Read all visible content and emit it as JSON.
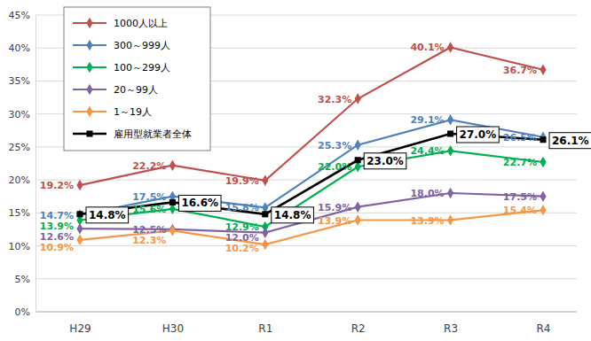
{
  "chart_data": {
    "type": "line",
    "categories": [
      "H29",
      "H30",
      "R1",
      "R2",
      "R3",
      "R4"
    ],
    "series": [
      {
        "name": "1000人以上",
        "color": "#C0504D",
        "marker": "diamond",
        "line_style": "solid",
        "values": [
          19.2,
          22.2,
          19.9,
          32.3,
          40.1,
          36.7
        ],
        "value_labels": [
          "19.2%",
          "22.2%",
          "19.9%",
          "32.3%",
          "40.1%",
          "36.7%"
        ]
      },
      {
        "name": "300～999人",
        "color": "#4F81BD",
        "marker": "diamond",
        "line_style": "solid",
        "values": [
          14.7,
          17.5,
          15.8,
          25.3,
          29.1,
          26.5
        ],
        "value_labels": [
          "14.7%",
          "17.5%",
          "15.8%",
          "25.3%",
          "29.1%",
          "26.5%"
        ]
      },
      {
        "name": "100～299人",
        "color": "#00B050",
        "marker": "diamond",
        "line_style": "solid",
        "values": [
          13.9,
          15.6,
          12.9,
          22.0,
          24.4,
          22.7
        ],
        "value_labels": [
          "13.9%",
          "15.6%",
          "12.9%",
          "22.0%",
          "24.4%",
          "22.7%"
        ]
      },
      {
        "name": "20～99人",
        "color": "#8064A2",
        "marker": "diamond",
        "line_style": "solid",
        "values": [
          12.6,
          12.5,
          12.0,
          15.9,
          18.0,
          17.5
        ],
        "value_labels": [
          "12.6%",
          "12.5%",
          "12.0%",
          "15.9%",
          "18.0%",
          "17.5%"
        ]
      },
      {
        "name": "1～19人",
        "color": "#F79646",
        "marker": "diamond",
        "line_style": "solid",
        "values": [
          10.9,
          12.3,
          10.2,
          13.9,
          13.9,
          15.4
        ],
        "value_labels": [
          "10.9%",
          "12.3%",
          "10.2%",
          "13.9%",
          "13.9%",
          "15.4%"
        ]
      },
      {
        "name": "雇用型就業者全体",
        "color": "#000000",
        "marker": "square",
        "line_style": "solid",
        "values": [
          14.8,
          16.6,
          14.8,
          23.0,
          27.0,
          26.1
        ],
        "value_labels": [
          "14.8%",
          "16.6%",
          "14.8%",
          "23.0%",
          "27.0%",
          "26.1%"
        ]
      }
    ],
    "ylim": [
      0,
      45
    ],
    "yticks": [
      {
        "value": 0,
        "label": "0%"
      },
      {
        "value": 5,
        "label": "5%"
      },
      {
        "value": 10,
        "label": "10%"
      },
      {
        "value": 15,
        "label": "15%"
      },
      {
        "value": 20,
        "label": "20%"
      },
      {
        "value": 25,
        "label": "25%"
      },
      {
        "value": 30,
        "label": "30%"
      },
      {
        "value": 35,
        "label": "35%"
      },
      {
        "value": 40,
        "label": "40%"
      },
      {
        "value": 45,
        "label": "45%"
      }
    ],
    "grid": true,
    "legend": "upper left",
    "data_labels": true
  }
}
